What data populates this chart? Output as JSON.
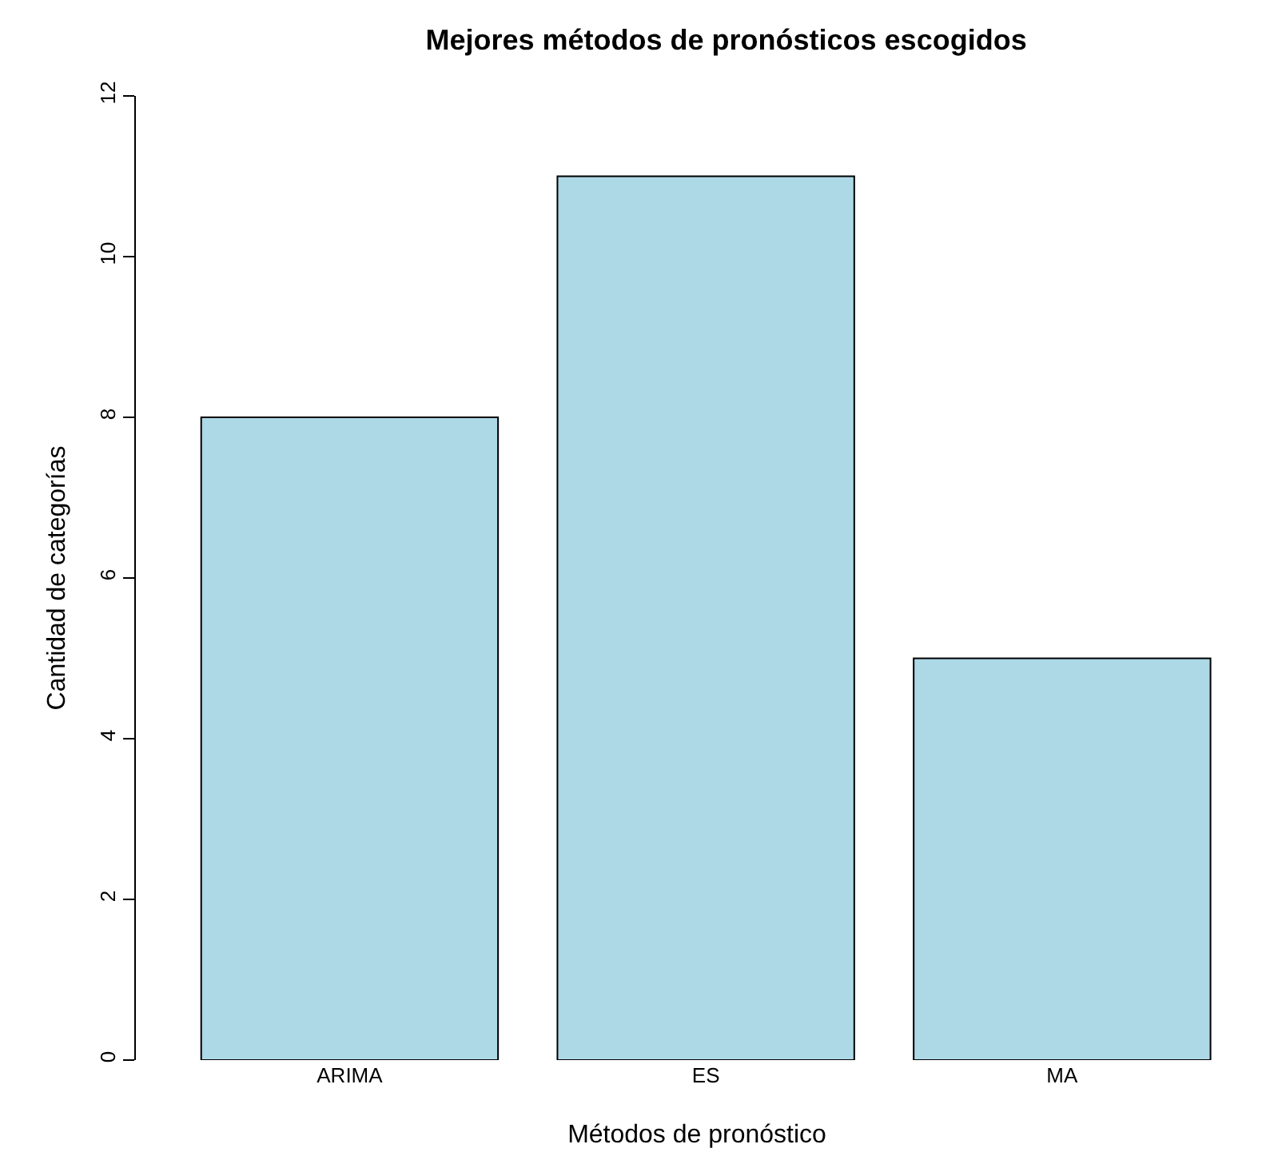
{
  "chart_data": {
    "type": "bar",
    "title": "Mejores métodos de pronósticos escogidos",
    "xlabel": "Métodos de pronóstico",
    "ylabel": "Cantidad de categorías",
    "categories": [
      "ARIMA",
      "ES",
      "MA"
    ],
    "values": [
      8,
      11,
      5
    ],
    "color": "#add8e6",
    "ylim": [
      0,
      12
    ],
    "yticks": [
      0,
      2,
      4,
      6,
      8,
      10,
      12
    ]
  }
}
